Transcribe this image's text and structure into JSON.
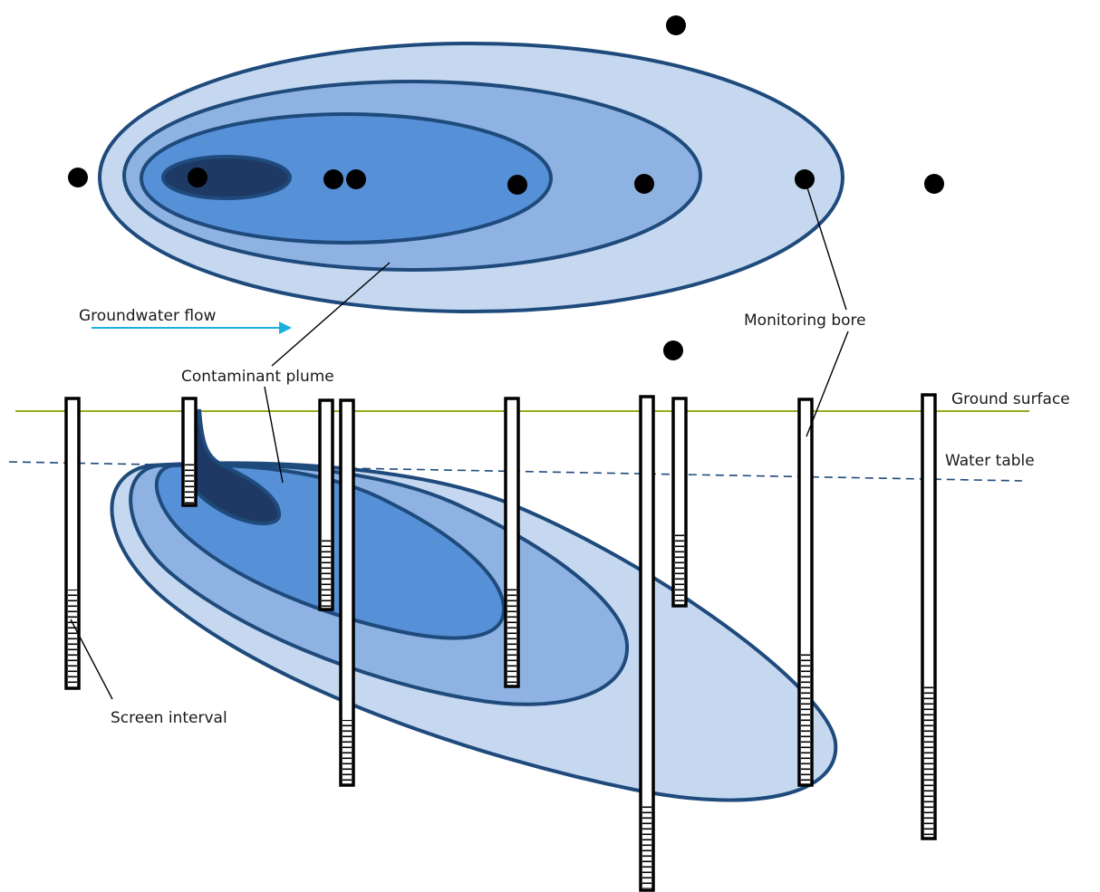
{
  "labels": {
    "groundwater_flow": "Groundwater flow",
    "contaminant_plume": "Contaminant plume",
    "monitoring_bore": "Monitoring bore",
    "ground_surface": "Ground surface",
    "water_table": "Water table",
    "screen_interval": "Screen interval"
  },
  "colors": {
    "plume_zone_1_lowest": "#c5d8f0",
    "plume_zone_2": "#8eb3e2",
    "plume_zone_3": "#5690d6",
    "plume_zone_4_highest": "#1e3a64",
    "plume_outline": "#1f4a7c",
    "ground_surface_line": "#9aaa1e",
    "water_table_line": "#1f4a7c",
    "flow_arrow": "#1ab0e0",
    "bore": "#000000"
  }
}
